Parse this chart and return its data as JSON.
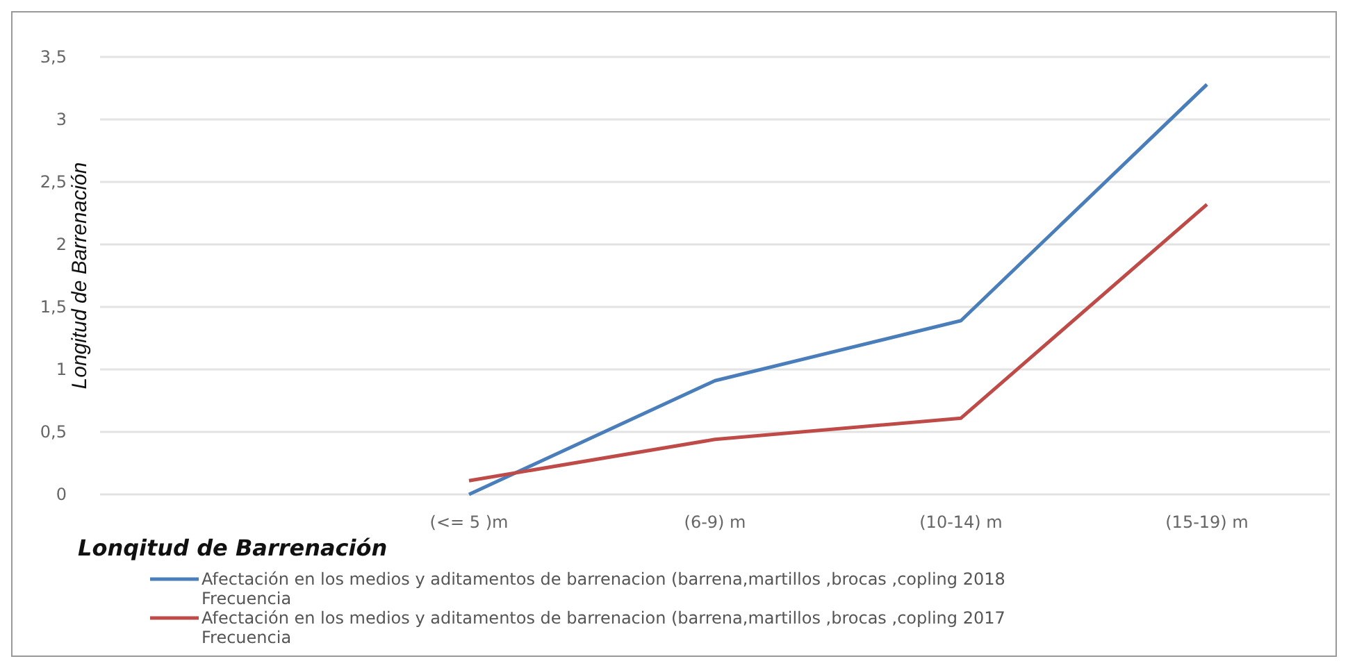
{
  "chart_data": {
    "type": "line",
    "xlabel": "Lonqitud de Barrenación",
    "ylabel": "Longitud de Barrenación",
    "categories": [
      null,
      "(<= 5 )m",
      "(6-9) m",
      "(10-14) m",
      "(15-19) m"
    ],
    "series": [
      {
        "name": "Afectación en los medios y aditamentos de barrenacion (barrena,martillos ,brocas ,copling 2018 Frecuencia",
        "color": "#4a7ebb",
        "values": [
          null,
          0,
          0.91,
          1.39,
          3.28
        ]
      },
      {
        "name": "Afectación en los medios y aditamentos de barrenacion (barrena,martillos ,brocas ,copling 2017 Frecuencia",
        "color": "#be4b48",
        "values": [
          null,
          0.11,
          0.44,
          0.61,
          2.32
        ]
      }
    ],
    "ylim": [
      0,
      3.5
    ],
    "yticks": [
      0,
      {
        "value": 0.5,
        "label": "0,5"
      },
      1,
      {
        "value": 1.5,
        "label": "1,5"
      },
      2,
      {
        "value": 2.5,
        "label": "2,5"
      },
      3,
      {
        "value": 3.5,
        "label": "3,5"
      }
    ],
    "grid": "y",
    "legend": "bottom",
    "marker": "none",
    "line_style": "solid"
  }
}
